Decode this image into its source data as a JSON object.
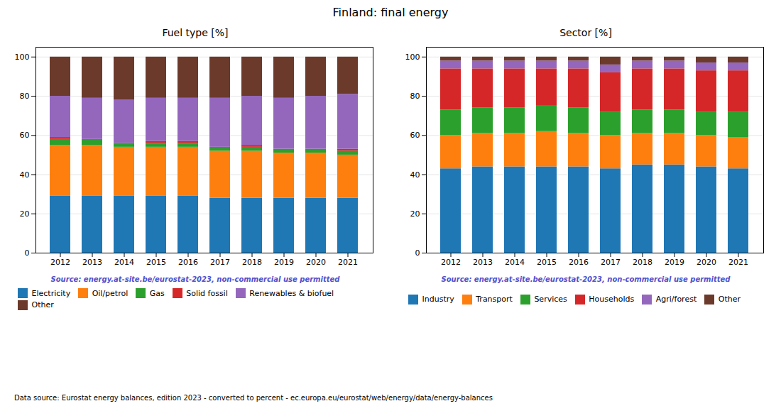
{
  "title": "Finland: final energy",
  "footnote": "Data source: Eurostat energy balances, edition 2023 - converted to percent - ec.europa.eu/eurostat/web/energy/data/energy-balances",
  "chart_data": [
    {
      "type": "bar",
      "stacked": true,
      "title": "Fuel type [%]",
      "categories": [
        "2012",
        "2013",
        "2014",
        "2015",
        "2016",
        "2017",
        "2018",
        "2019",
        "2020",
        "2021"
      ],
      "series": [
        {
          "name": "Electricity",
          "color": "#1f77b4",
          "values": [
            29,
            29,
            29,
            29,
            29,
            28,
            28,
            28,
            28,
            28
          ]
        },
        {
          "name": "Oil/petrol",
          "color": "#ff7f0e",
          "values": [
            26,
            26,
            25,
            25,
            25,
            24,
            24,
            23,
            23,
            22
          ]
        },
        {
          "name": "Gas",
          "color": "#2ca02c",
          "values": [
            3,
            3,
            2,
            2,
            2,
            2,
            2,
            2,
            2,
            2
          ]
        },
        {
          "name": "Solid fossil",
          "color": "#d62728",
          "values": [
            1,
            0,
            0,
            1,
            1,
            0,
            1,
            0,
            0,
            1
          ]
        },
        {
          "name": "Renewables & biofuel",
          "color": "#9467bd",
          "values": [
            21,
            21,
            22,
            22,
            22,
            25,
            25,
            26,
            27,
            28
          ]
        },
        {
          "name": "Other",
          "color": "#6b3a2a",
          "values": [
            20,
            21,
            22,
            21,
            21,
            21,
            20,
            21,
            20,
            19
          ]
        }
      ],
      "ylim": [
        0,
        105
      ],
      "yticks": [
        0,
        20,
        40,
        60,
        80,
        100
      ],
      "grid": true,
      "legend": "bottom",
      "annotations": [
        {
          "text": "Source: energy.at-site.be/eurostat-2023, non-commercial use permitted",
          "color": "#5050cc"
        }
      ]
    },
    {
      "type": "bar",
      "stacked": true,
      "title": "Sector [%]",
      "categories": [
        "2012",
        "2013",
        "2014",
        "2015",
        "2016",
        "2017",
        "2018",
        "2019",
        "2020",
        "2021"
      ],
      "series": [
        {
          "name": "Industry",
          "color": "#1f77b4",
          "values": [
            43,
            44,
            44,
            44,
            44,
            43,
            45,
            45,
            44,
            43
          ]
        },
        {
          "name": "Transport",
          "color": "#ff7f0e",
          "values": [
            17,
            17,
            17,
            18,
            17,
            17,
            16,
            16,
            16,
            16
          ]
        },
        {
          "name": "Services",
          "color": "#2ca02c",
          "values": [
            13,
            13,
            13,
            13,
            13,
            12,
            12,
            12,
            12,
            13
          ]
        },
        {
          "name": "Households",
          "color": "#d62728",
          "values": [
            21,
            20,
            20,
            19,
            20,
            20,
            21,
            21,
            21,
            21
          ]
        },
        {
          "name": "Agri/forest",
          "color": "#9467bd",
          "values": [
            4,
            4,
            4,
            4,
            4,
            4,
            4,
            4,
            4,
            4
          ]
        },
        {
          "name": "Other",
          "color": "#6b3a2a",
          "values": [
            2,
            2,
            2,
            2,
            2,
            4,
            2,
            2,
            3,
            3
          ]
        }
      ],
      "ylim": [
        0,
        105
      ],
      "yticks": [
        0,
        20,
        40,
        60,
        80,
        100
      ],
      "grid": true,
      "legend": "bottom",
      "annotations": [
        {
          "text": "Source: energy.at-site.be/eurostat-2023, non-commercial use permitted",
          "color": "#5050cc"
        }
      ]
    }
  ]
}
